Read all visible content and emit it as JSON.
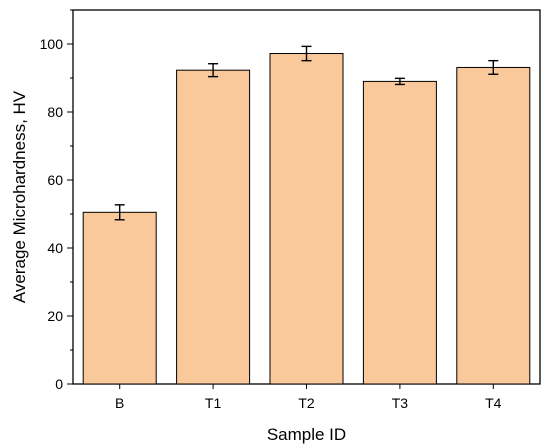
{
  "chart_data": {
    "type": "bar",
    "xlabel": "Sample ID",
    "ylabel": "Average Microhardness, HV",
    "categories": [
      "B",
      "T1",
      "T2",
      "T3",
      "T4"
    ],
    "values": [
      50.5,
      92.3,
      97.2,
      89.0,
      93.1
    ],
    "errors": [
      2.2,
      1.9,
      2.1,
      0.9,
      2.0
    ],
    "ylim": [
      0,
      110
    ],
    "yticks": [
      0,
      20,
      40,
      60,
      80,
      100
    ],
    "grid": false,
    "legend": "none",
    "bar_color": "#F9C89B",
    "bar_edge_color": "#000000"
  }
}
